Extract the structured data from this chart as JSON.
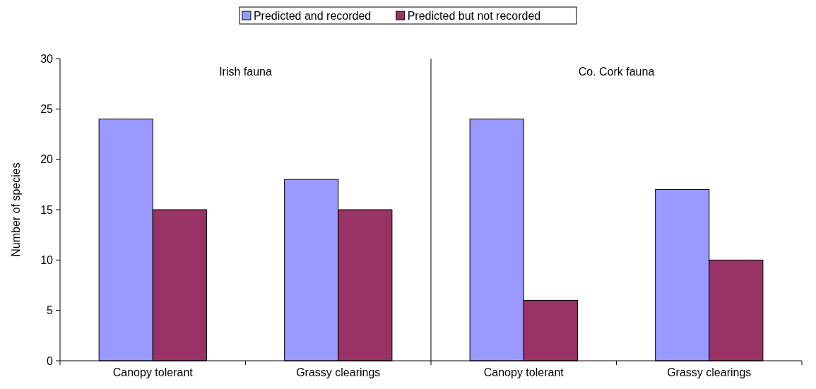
{
  "chart_data": {
    "type": "bar",
    "ylabel": "Number of species",
    "categories": [
      "Canopy tolerant",
      "Grassy clearings",
      "Canopy tolerant",
      "Grassy clearings"
    ],
    "series": [
      {
        "name": "Predicted and recorded",
        "color": "#9999ff",
        "values": [
          24,
          18,
          24,
          17
        ]
      },
      {
        "name": "Predicted but not recorded",
        "color": "#993366",
        "values": [
          15,
          15,
          6,
          10
        ]
      }
    ],
    "ylim": [
      0,
      30
    ],
    "yticks": [
      0,
      5,
      10,
      15,
      20,
      25,
      30
    ],
    "grid": false,
    "legend": "top",
    "annotations": [
      "Irish fauna",
      "Co. Cork fauna"
    ]
  }
}
